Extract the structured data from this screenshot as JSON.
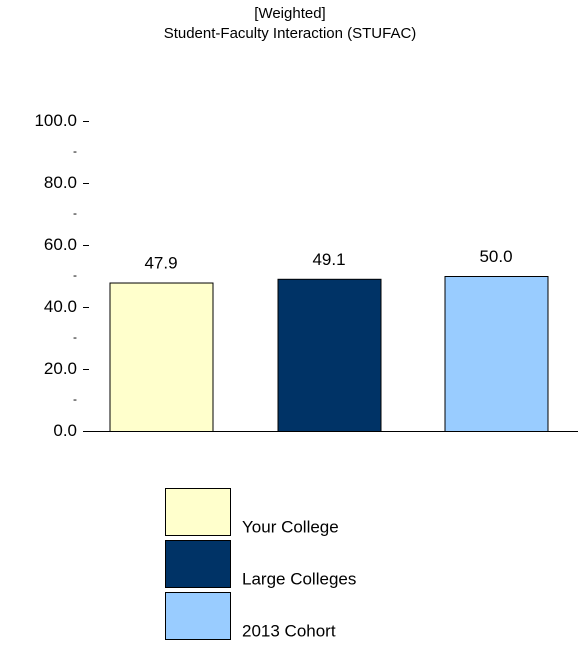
{
  "chart_data": {
    "type": "bar",
    "title": "[Weighted]",
    "subtitle": "Student-Faculty Interaction (STUFAC)",
    "xlabel": "",
    "ylabel": "",
    "ylim": [
      0,
      100
    ],
    "yticks": [
      "0.0",
      "20.0",
      "40.0",
      "60.0",
      "80.0",
      "100.0"
    ],
    "minor_tick_marker": "-",
    "grid": false,
    "legend_position": "bottom-center",
    "categories": [
      "Your College",
      "Large Colleges",
      "2013 Cohort"
    ],
    "values": [
      47.9,
      49.1,
      50.0
    ],
    "data_labels": [
      "47.9",
      "49.1",
      "50.0"
    ],
    "colors": [
      "#ffffcc",
      "#003366",
      "#99ccff"
    ],
    "legend": [
      "Your College",
      "Large Colleges",
      "2013 Cohort"
    ]
  }
}
